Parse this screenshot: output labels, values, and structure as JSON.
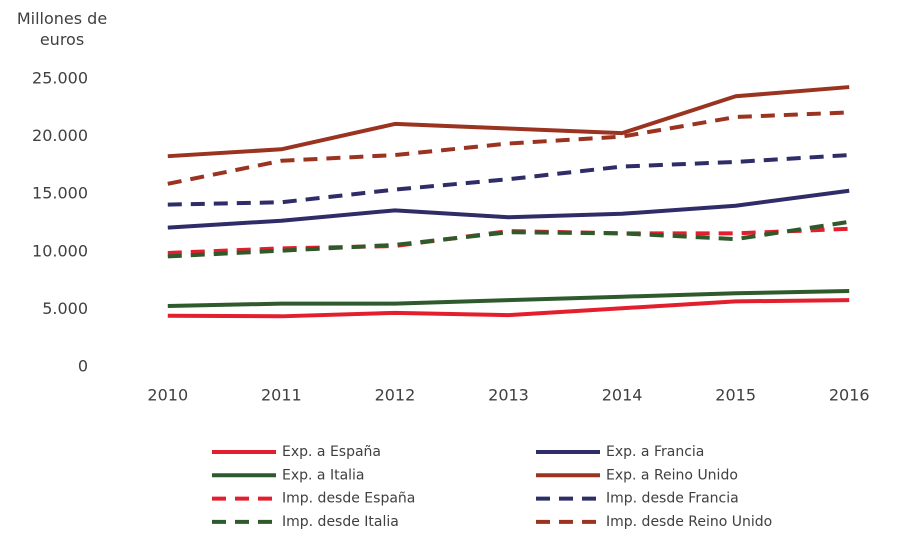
{
  "chart_data": {
    "type": "line",
    "y_label": "Millones de euros",
    "categories": [
      "2010",
      "2011",
      "2012",
      "2013",
      "2014",
      "2015",
      "2016"
    ],
    "ylim": [
      0,
      25000
    ],
    "yticks": [
      0,
      {
        "value": 5000,
        "label": "5.000"
      },
      {
        "value": 10000,
        "label": "10.000"
      },
      {
        "value": 15000,
        "label": "15.000"
      },
      {
        "value": 20000,
        "label": "20.000"
      },
      {
        "value": 25000,
        "label": "25.000"
      }
    ],
    "grid": false,
    "series": [
      {
        "name": "Exp. a España",
        "color": "#e31e2d",
        "style": "solid",
        "values": [
          4450,
          4400,
          4700,
          4500,
          5100,
          5700,
          5800
        ]
      },
      {
        "name": "Exp. a Francia",
        "color": "#2e2d68",
        "style": "solid",
        "values": [
          12100,
          12700,
          13600,
          13000,
          13300,
          14000,
          15300
        ]
      },
      {
        "name": "Exp. a Italia",
        "color": "#2f5a2b",
        "style": "solid",
        "values": [
          5300,
          5500,
          5500,
          5800,
          6100,
          6400,
          6600
        ]
      },
      {
        "name": "Exp. a Reino Unido",
        "color": "#9b3321",
        "style": "solid",
        "values": [
          18300,
          18900,
          21100,
          20700,
          20300,
          23500,
          24300
        ]
      },
      {
        "name": "Imp. desde España",
        "color": "#e31e2d",
        "style": "dashed",
        "values": [
          9900,
          10300,
          10500,
          11800,
          11600,
          11600,
          12000
        ]
      },
      {
        "name": "Imp. desde Francia",
        "color": "#2e2d68",
        "style": "dashed",
        "values": [
          14100,
          14300,
          15400,
          16300,
          17400,
          17800,
          18400
        ]
      },
      {
        "name": "Imp. desde Italia",
        "color": "#2f5a2b",
        "style": "dashed",
        "values": [
          9600,
          10100,
          10600,
          11700,
          11600,
          11100,
          12600
        ]
      },
      {
        "name": "Imp. desde Reino Unido",
        "color": "#9b3321",
        "style": "dashed",
        "values": [
          15900,
          17900,
          18400,
          19400,
          20000,
          21700,
          22100
        ]
      }
    ]
  }
}
